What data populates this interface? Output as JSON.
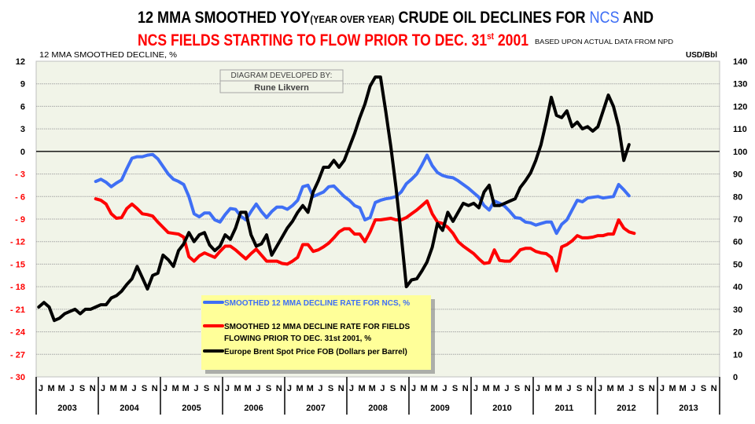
{
  "title": {
    "line1_a": "12 MMA SMOOTHED YOY",
    "line1_small": "(YEAR OVER YEAR)",
    "line1_b": " CRUDE OIL DECLINES FOR ",
    "line1_ncs": "NCS",
    "line1_c": " AND",
    "line2_a": "NCS FIELDS STARTING TO FLOW PRIOR TO DEC. 31",
    "line2_sup": "st",
    "line2_b": " 2001",
    "source_note": "BASED UPON ACTUAL DATA FROM NPD"
  },
  "credit": {
    "heading": "DIAGRAM DEVELOPED BY:",
    "author": "Rune Likvern"
  },
  "colors": {
    "ncs": "#3f6ff5",
    "fields": "#ff0000",
    "brent": "#000000",
    "plot_bg": "#f1f4e8",
    "legend_bg": "#ffff99",
    "negative_tick": "#ff0000"
  },
  "chart_data": {
    "type": "line",
    "ylabel_left": "12 MMA SMOOTHED DECLINE, %",
    "ylabel_right": "USD/Bbl",
    "ylim_left": [
      -30,
      12
    ],
    "ylim_right": [
      0,
      140
    ],
    "yticks_left": [
      "12",
      "9",
      "6",
      "3",
      "0",
      "- 3",
      "- 6",
      "- 9",
      "- 12",
      "- 15",
      "- 18",
      "- 21",
      "- 24",
      "- 27",
      "- 30"
    ],
    "yticks_right": [
      "140",
      "130",
      "120",
      "110",
      "100",
      "90",
      "80",
      "70",
      "60",
      "50",
      "40",
      "30",
      "20",
      "10",
      "0"
    ],
    "month_labels": [
      "J",
      "",
      "M",
      "",
      "M",
      "",
      "J",
      "",
      "S",
      "",
      "N",
      ""
    ],
    "years": [
      "2003",
      "2004",
      "2005",
      "2006",
      "2007",
      "2008",
      "2009",
      "2010",
      "2011",
      "2012",
      "2013"
    ],
    "grid": true,
    "legend_position": "bottom-center",
    "series": [
      {
        "name": "SMOOTHED 12 MMA DECLINE RATE FOR NCS, %",
        "axis": "left",
        "start_month": "2003-12",
        "start_index": 11,
        "values": [
          -4.0,
          -3.7,
          -4.1,
          -4.7,
          -4.2,
          -3.8,
          -2.3,
          -0.9,
          -0.7,
          -0.7,
          -0.5,
          -0.4,
          -1.0,
          -2.0,
          -3.0,
          -3.7,
          -4.0,
          -4.4,
          -6.0,
          -8.3,
          -8.7,
          -8.2,
          -8.2,
          -9.1,
          -9.4,
          -8.4,
          -7.6,
          -7.7,
          -8.6,
          -9.1,
          -8.0,
          -7.0,
          -8.0,
          -8.8,
          -8.0,
          -7.4,
          -7.4,
          -7.7,
          -7.2,
          -6.5,
          -4.7,
          -4.5,
          -6.0,
          -5.7,
          -5.4,
          -4.7,
          -4.6,
          -5.3,
          -6.0,
          -6.5,
          -7.2,
          -7.5,
          -9.1,
          -8.8,
          -6.8,
          -6.5,
          -6.3,
          -6.2,
          -6.0,
          -5.4,
          -4.3,
          -3.7,
          -3.0,
          -1.8,
          -0.5,
          -1.9,
          -2.8,
          -3.2,
          -3.4,
          -3.5,
          -3.9,
          -4.4,
          -4.9,
          -5.5,
          -6.1,
          -7.2,
          -7.8,
          -6.6,
          -6.9,
          -7.3,
          -8.0,
          -8.8,
          -8.9,
          -9.4,
          -9.5,
          -9.8,
          -9.6,
          -9.4,
          -9.4,
          -10.9,
          -9.7,
          -9.1,
          -7.8,
          -6.5,
          -6.7,
          -6.2,
          -6.1,
          -6.0,
          -6.2,
          -6.1,
          -6.0,
          -4.4,
          -5.1,
          -5.9
        ]
      },
      {
        "name": "SMOOTHED 12 MMA DECLINE RATE FOR FIELDS FLOWING PRIOR TO DEC. 31st 2001, %",
        "legend_line1": "SMOOTHED 12 MMA DECLINE RATE FOR FIELDS",
        "legend_line2": "FLOWING PRIOR TO DEC. 31st 2001, %",
        "axis": "left",
        "start_month": "2003-12",
        "start_index": 11,
        "values": [
          -6.3,
          -6.5,
          -7.0,
          -8.3,
          -8.9,
          -8.8,
          -7.6,
          -7.0,
          -7.6,
          -8.3,
          -8.4,
          -8.6,
          -9.4,
          -10.1,
          -10.8,
          -10.9,
          -11.0,
          -11.4,
          -14.0,
          -14.6,
          -13.9,
          -13.5,
          -13.8,
          -14.1,
          -13.3,
          -12.6,
          -12.6,
          -13.1,
          -13.7,
          -14.3,
          -13.6,
          -13.0,
          -13.8,
          -14.6,
          -14.6,
          -14.6,
          -14.9,
          -15.0,
          -14.6,
          -14.1,
          -12.4,
          -12.4,
          -13.3,
          -13.1,
          -12.7,
          -12.2,
          -11.5,
          -10.7,
          -10.3,
          -10.3,
          -11.0,
          -11.0,
          -12.0,
          -10.7,
          -9.1,
          -9.1,
          -9.0,
          -8.9,
          -9.1,
          -9.1,
          -8.8,
          -8.3,
          -7.8,
          -7.2,
          -6.6,
          -8.3,
          -9.4,
          -9.6,
          -10.1,
          -10.9,
          -12.0,
          -12.6,
          -13.1,
          -13.6,
          -14.3,
          -14.9,
          -14.8,
          -13.1,
          -14.5,
          -14.6,
          -14.6,
          -13.9,
          -13.1,
          -12.9,
          -12.9,
          -13.3,
          -13.5,
          -13.6,
          -14.1,
          -15.9,
          -12.7,
          -12.4,
          -11.9,
          -11.2,
          -11.5,
          -11.5,
          -11.4,
          -11.2,
          -11.2,
          -11.0,
          -11.0,
          -9.1,
          -10.2,
          -10.7,
          -10.9
        ]
      },
      {
        "name": "Europe Brent Spot Price FOB (Dollars per Barrel)",
        "axis": "right",
        "start_month": "2003-01",
        "start_index": 0,
        "values": [
          31,
          33,
          31,
          25,
          26,
          28,
          29,
          30,
          28,
          30,
          30,
          31,
          32,
          32,
          35,
          36,
          38,
          41,
          43.5,
          49,
          44,
          39,
          45,
          46,
          54,
          52,
          49,
          56,
          59,
          64,
          60,
          63,
          64,
          58.5,
          56,
          58,
          63,
          61,
          66,
          73,
          73,
          63,
          58,
          59,
          63,
          54,
          58,
          62,
          66,
          69,
          73,
          76,
          73,
          82,
          87,
          93,
          93,
          96,
          93,
          96,
          102,
          108,
          115,
          121,
          129,
          133,
          133,
          118,
          102,
          84,
          63,
          40,
          43,
          43.5,
          47,
          51,
          57.5,
          68,
          65,
          73,
          69,
          73,
          77,
          76,
          77,
          75,
          82,
          85,
          76,
          76,
          77,
          78,
          79,
          84,
          87,
          90.5,
          96,
          103,
          113,
          124,
          116,
          115,
          118,
          111,
          113,
          110,
          111,
          109,
          111,
          118,
          125,
          120,
          111,
          96,
          103
        ]
      }
    ]
  }
}
